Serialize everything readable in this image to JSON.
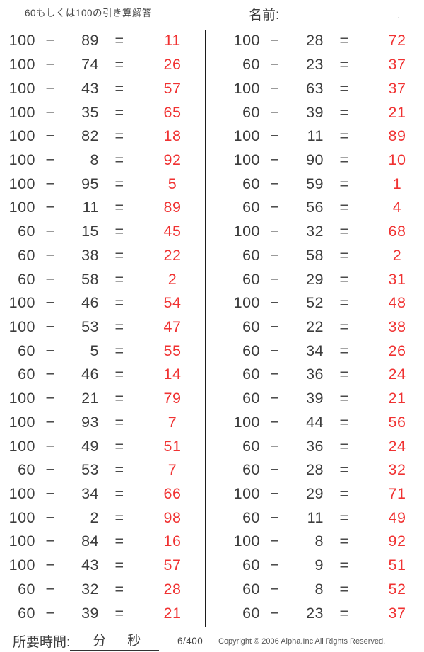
{
  "header": {
    "title": "60もしくは100の引き算解答",
    "name_label": "名前:",
    "name_line_end": "."
  },
  "symbols": {
    "minus": "−",
    "equals": "="
  },
  "columns": {
    "left": [
      {
        "a": "100",
        "b": "89",
        "ans": "11"
      },
      {
        "a": "100",
        "b": "74",
        "ans": "26"
      },
      {
        "a": "100",
        "b": "43",
        "ans": "57"
      },
      {
        "a": "100",
        "b": "35",
        "ans": "65"
      },
      {
        "a": "100",
        "b": "82",
        "ans": "18"
      },
      {
        "a": "100",
        "b": "8",
        "ans": "92"
      },
      {
        "a": "100",
        "b": "95",
        "ans": "5"
      },
      {
        "a": "100",
        "b": "11",
        "ans": "89"
      },
      {
        "a": "60",
        "b": "15",
        "ans": "45"
      },
      {
        "a": "60",
        "b": "38",
        "ans": "22"
      },
      {
        "a": "60",
        "b": "58",
        "ans": "2"
      },
      {
        "a": "100",
        "b": "46",
        "ans": "54"
      },
      {
        "a": "100",
        "b": "53",
        "ans": "47"
      },
      {
        "a": "60",
        "b": "5",
        "ans": "55"
      },
      {
        "a": "60",
        "b": "46",
        "ans": "14"
      },
      {
        "a": "100",
        "b": "21",
        "ans": "79"
      },
      {
        "a": "100",
        "b": "93",
        "ans": "7"
      },
      {
        "a": "100",
        "b": "49",
        "ans": "51"
      },
      {
        "a": "60",
        "b": "53",
        "ans": "7"
      },
      {
        "a": "100",
        "b": "34",
        "ans": "66"
      },
      {
        "a": "100",
        "b": "2",
        "ans": "98"
      },
      {
        "a": "100",
        "b": "84",
        "ans": "16"
      },
      {
        "a": "100",
        "b": "43",
        "ans": "57"
      },
      {
        "a": "60",
        "b": "32",
        "ans": "28"
      },
      {
        "a": "60",
        "b": "39",
        "ans": "21"
      }
    ],
    "right": [
      {
        "a": "100",
        "b": "28",
        "ans": "72"
      },
      {
        "a": "60",
        "b": "23",
        "ans": "37"
      },
      {
        "a": "100",
        "b": "63",
        "ans": "37"
      },
      {
        "a": "60",
        "b": "39",
        "ans": "21"
      },
      {
        "a": "100",
        "b": "11",
        "ans": "89"
      },
      {
        "a": "100",
        "b": "90",
        "ans": "10"
      },
      {
        "a": "60",
        "b": "59",
        "ans": "1"
      },
      {
        "a": "60",
        "b": "56",
        "ans": "4"
      },
      {
        "a": "100",
        "b": "32",
        "ans": "68"
      },
      {
        "a": "60",
        "b": "58",
        "ans": "2"
      },
      {
        "a": "60",
        "b": "29",
        "ans": "31"
      },
      {
        "a": "100",
        "b": "52",
        "ans": "48"
      },
      {
        "a": "60",
        "b": "22",
        "ans": "38"
      },
      {
        "a": "60",
        "b": "34",
        "ans": "26"
      },
      {
        "a": "60",
        "b": "36",
        "ans": "24"
      },
      {
        "a": "60",
        "b": "39",
        "ans": "21"
      },
      {
        "a": "100",
        "b": "44",
        "ans": "56"
      },
      {
        "a": "60",
        "b": "36",
        "ans": "24"
      },
      {
        "a": "60",
        "b": "28",
        "ans": "32"
      },
      {
        "a": "100",
        "b": "29",
        "ans": "71"
      },
      {
        "a": "60",
        "b": "11",
        "ans": "49"
      },
      {
        "a": "100",
        "b": "8",
        "ans": "92"
      },
      {
        "a": "60",
        "b": "9",
        "ans": "51"
      },
      {
        "a": "60",
        "b": "8",
        "ans": "52"
      },
      {
        "a": "60",
        "b": "23",
        "ans": "37"
      }
    ]
  },
  "footer": {
    "time_label": "所要時間:",
    "minutes_label": "分",
    "seconds_label": "秒",
    "page_number": "6/400",
    "copyright": "Copyright © 2006 Alpha.Inc All Rights Reserved."
  },
  "colors": {
    "answer_red": "#f03232",
    "text_dark": "#3c3c3c"
  }
}
